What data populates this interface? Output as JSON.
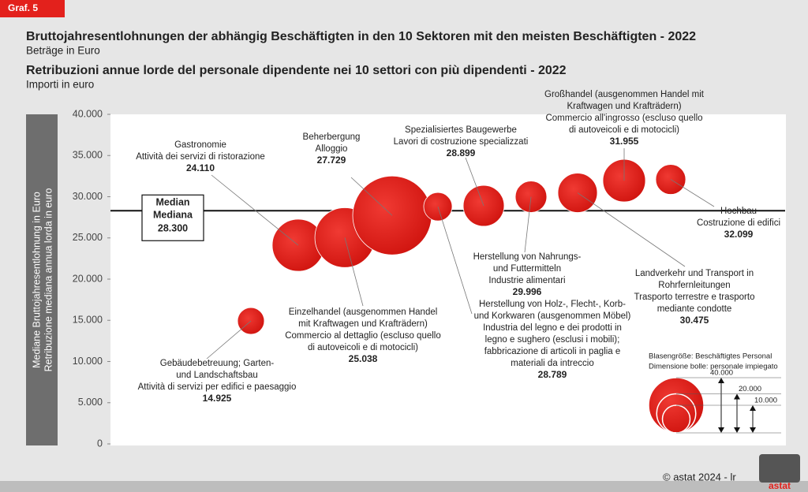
{
  "chart_data": {
    "type": "bubble",
    "badge": "Graf. 5",
    "title": "Bruttojahresentlohnungen der abhängig Beschäftigten in den 10 Sektoren mit den meisten Beschäftigten - 2022",
    "subtitle": "Beträge in Euro",
    "title_it": "Retribuzioni annue lorde del personale dipendente nei 10 settori con più dipendenti  - 2022",
    "subtitle_it": "Importi in euro",
    "ylabel": [
      "Mediane Bruttojahresentlohnung in Euro",
      "Retribuzione mediana annua lorda in euro"
    ],
    "categories": [
      [
        "Gebäudebetreuung; Garten-",
        "und Landschaftsbau",
        "Attività di servizi per edifici e paesaggio"
      ],
      [
        "Gastronomie",
        "Attività dei servizi di ristorazione"
      ],
      [
        "Einzelhandel (ausgenommen Handel",
        "mit Kraftwagen und Krafträdern)",
        "Commercio al dettaglio (escluso quello",
        "di autoveicoli e di motocicli)"
      ],
      [
        "Beherbergung",
        "Alloggio"
      ],
      [
        "Herstellung von Holz-, Flecht-, Korb-",
        "und Korkwaren (ausgenommen Möbel)",
        "Industria del legno e dei prodotti in",
        "legno e sughero (esclusi i mobili);",
        "fabbricazione di articoli in paglia e",
        "materiali da intreccio"
      ],
      [
        "Spezialisiertes Baugewerbe",
        "Lavori di costruzione specializzati"
      ],
      [
        "Herstellung von Nahrungs-",
        "und Futtermitteln",
        "Industrie alimentari"
      ],
      [
        "Landverkehr und Transport in",
        "Rohrfernleitungen",
        "Trasporto terrestre e trasporto",
        "mediante condotte"
      ],
      [
        "Großhandel (ausgenommen Handel mit",
        "Kraftwagen und Krafträdern)",
        "Commercio all'ingrosso (escluso quello",
        "di autoveicoli e di motocicli)"
      ],
      [
        "Hochbau",
        "Costruzione di edifici"
      ]
    ],
    "values": [
      14925,
      24110,
      25038,
      27729,
      28789,
      28899,
      29996,
      30475,
      31955,
      32099
    ],
    "value_labels": [
      "14.925",
      "24.110",
      "25.038",
      "27.729",
      "28.789",
      "28.899",
      "29.996",
      "30.475",
      "31.955",
      "32.099"
    ],
    "sizes": [
      9400,
      35600,
      47000,
      81600,
      10600,
      22000,
      13000,
      20400,
      23800,
      11800
    ],
    "color": "#e3211c",
    "ylim": [
      0,
      40000
    ],
    "yticks": [
      0,
      {
        "value": 5000,
        "label": "5.000"
      },
      {
        "value": 10000,
        "label": "10.000"
      },
      {
        "value": 15000,
        "label": "15.000"
      },
      {
        "value": 20000,
        "label": "20.000"
      },
      {
        "value": 25000,
        "label": "25.000"
      },
      {
        "value": 30000,
        "label": "30.000"
      },
      {
        "value": 35000,
        "label": "35.000"
      },
      {
        "value": 40000,
        "label": "40.000"
      }
    ],
    "median": {
      "labels": [
        "Median",
        "Mediana"
      ],
      "value": 28300,
      "value_label": "28.300"
    },
    "size_legend": {
      "title": [
        "Blasengröße: Beschäftigtes Personal",
        "Dimensione bolle: personale impiegato"
      ],
      "sizes": [
        40000,
        20000,
        10000
      ],
      "labels": [
        "40.000",
        "20.000",
        "10.000"
      ]
    },
    "footer": "© astat 2024 - lr",
    "logo": "astat"
  }
}
